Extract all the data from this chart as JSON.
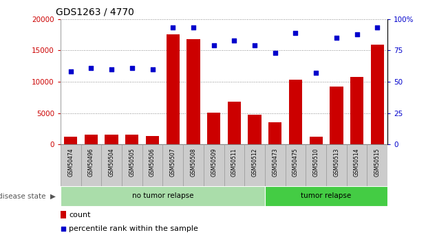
{
  "title": "GDS1263 / 4770",
  "categories": [
    "GSM50474",
    "GSM50496",
    "GSM50504",
    "GSM50505",
    "GSM50506",
    "GSM50507",
    "GSM50508",
    "GSM50509",
    "GSM50511",
    "GSM50512",
    "GSM50473",
    "GSM50475",
    "GSM50510",
    "GSM50513",
    "GSM50514",
    "GSM50515"
  ],
  "count_values": [
    1300,
    1600,
    1600,
    1600,
    1400,
    17500,
    16800,
    5100,
    6800,
    4800,
    3500,
    10300,
    1300,
    9200,
    10800,
    15900
  ],
  "percentile_values": [
    58,
    61,
    60,
    61,
    60,
    93,
    93,
    79,
    83,
    79,
    73,
    89,
    57,
    85,
    88,
    93
  ],
  "disease_state_groups": [
    {
      "label": "no tumor relapse",
      "start": 0,
      "end": 10,
      "color": "#aaddaa"
    },
    {
      "label": "tumor relapse",
      "start": 10,
      "end": 16,
      "color": "#44cc44"
    }
  ],
  "bar_color": "#cc0000",
  "dot_color": "#0000cc",
  "left_yaxis_color": "#cc0000",
  "right_yaxis_color": "#0000cc",
  "left_yticks": [
    0,
    5000,
    10000,
    15000,
    20000
  ],
  "right_yticks": [
    0,
    25,
    50,
    75,
    100
  ],
  "right_yticklabels": [
    "0",
    "25",
    "50",
    "75",
    "100%"
  ],
  "ylim_left": [
    0,
    20000
  ],
  "ylim_right": [
    0,
    100
  ],
  "grid_color": "#888888",
  "tick_bg_color": "#cccccc",
  "tick_border_color": "#999999",
  "fig_width": 6.51,
  "fig_height": 3.45
}
